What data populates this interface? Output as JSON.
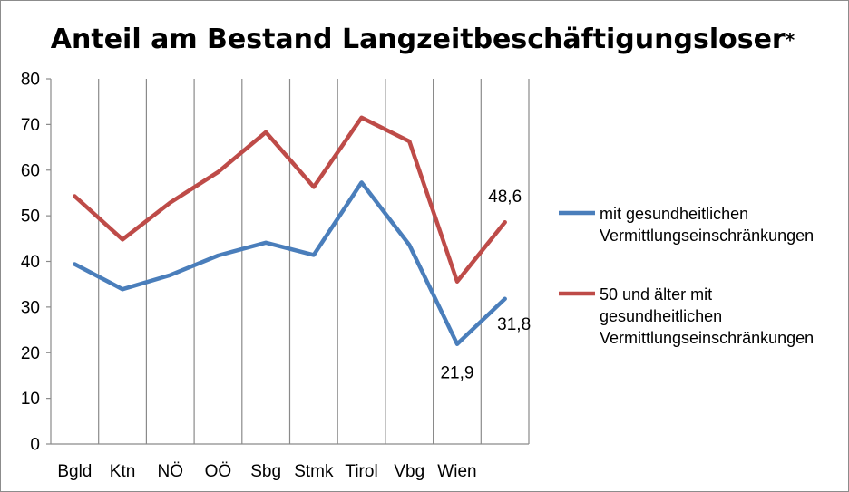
{
  "chart_data": {
    "type": "line",
    "title": "Anteil am Bestand Langzeitbeschäftigungsloser",
    "title_mark": "*",
    "xlabel": "",
    "ylabel": "",
    "ylim": [
      0,
      80
    ],
    "yticks": [
      "0",
      "10",
      "20",
      "30",
      "40",
      "50",
      "60",
      "70",
      "80"
    ],
    "grid": "vertical",
    "legend_position": "right",
    "categories": [
      "Bgld",
      "Ktn",
      "NÖ",
      "OÖ",
      "Sbg",
      "Stmk",
      "Tirol",
      "Vbg",
      "Wien",
      ""
    ],
    "series": [
      {
        "name_lines": [
          "mit gesundheitlichen",
          "Vermittlungseinschränkungen"
        ],
        "color": "#4a7ebb",
        "values": [
          39.4,
          33.9,
          37.0,
          41.3,
          44.1,
          41.4,
          57.3,
          43.6,
          21.9,
          31.8
        ],
        "labels": [
          null,
          null,
          null,
          null,
          null,
          null,
          null,
          null,
          "21,9",
          "31,8"
        ]
      },
      {
        "name_lines": [
          "50 und älter mit",
          "gesundheitlichen",
          "Vermittlungseinschränkungen"
        ],
        "color": "#be4b48",
        "values": [
          54.3,
          44.8,
          52.9,
          59.6,
          68.3,
          56.3,
          71.5,
          66.3,
          35.6,
          48.6
        ],
        "labels": [
          null,
          null,
          null,
          null,
          null,
          null,
          null,
          null,
          null,
          "48,6"
        ]
      }
    ]
  }
}
